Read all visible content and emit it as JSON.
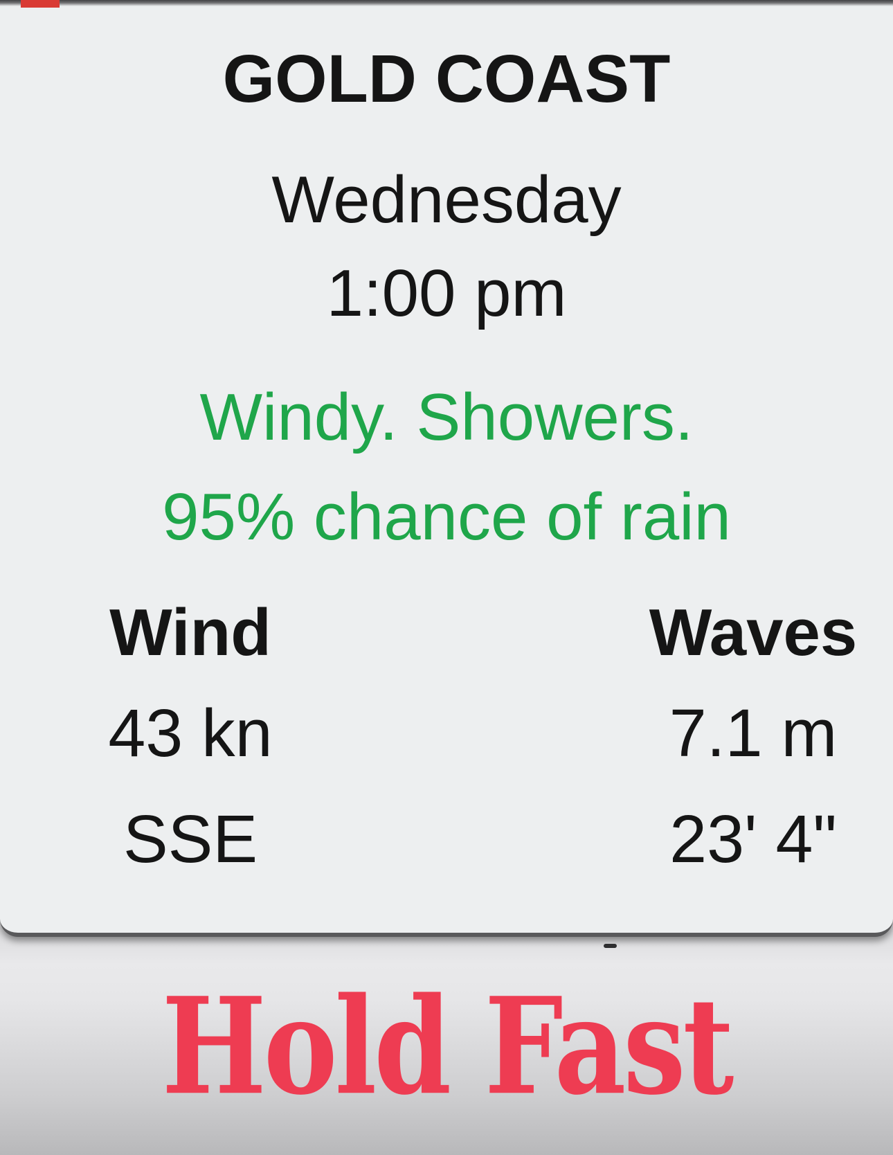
{
  "location": {
    "title": "GOLD COAST"
  },
  "datetime": {
    "day": "Wednesday",
    "time": "1:00 pm"
  },
  "conditions": {
    "line1": "Windy. Showers.",
    "line2": "95% chance of rain",
    "text_color": "#1fa64a"
  },
  "wind": {
    "header": "Wind",
    "speed": "43 kn",
    "direction": "SSE"
  },
  "waves": {
    "header": "Waves",
    "height_metric": "7.1 m",
    "height_imperial": "23' 4\""
  },
  "banner": {
    "text": "Hold Fast",
    "text_color": "#ee3c52"
  },
  "colors": {
    "card_background": "#edeff0",
    "bar_background": "#d9d9db",
    "body_text": "#151515",
    "card_edge": "#59595b",
    "top_left_chip": "#d93a34"
  }
}
